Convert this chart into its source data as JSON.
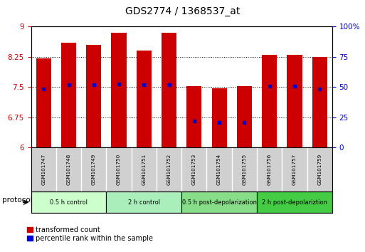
{
  "title": "GDS2774 / 1368537_at",
  "samples": [
    "GSM101747",
    "GSM101748",
    "GSM101749",
    "GSM101750",
    "GSM101751",
    "GSM101752",
    "GSM101753",
    "GSM101754",
    "GSM101755",
    "GSM101756",
    "GSM101757",
    "GSM101759"
  ],
  "bar_tops": [
    8.2,
    8.6,
    8.55,
    8.85,
    8.4,
    8.85,
    7.52,
    7.47,
    7.52,
    8.3,
    8.3,
    8.25
  ],
  "bar_bottoms": [
    6.0,
    6.0,
    6.0,
    6.0,
    6.0,
    6.0,
    6.0,
    6.0,
    6.0,
    6.0,
    6.0,
    6.0
  ],
  "blue_dots": [
    7.45,
    7.55,
    7.55,
    7.58,
    7.56,
    7.55,
    6.65,
    6.62,
    6.62,
    7.52,
    7.52,
    7.45
  ],
  "ylim_left": [
    6.0,
    9.0
  ],
  "ylim_right": [
    0,
    100
  ],
  "yticks_left": [
    6.0,
    6.75,
    7.5,
    8.25,
    9.0
  ],
  "ytick_labels_left": [
    "6",
    "6.75",
    "7.5",
    "8.25",
    "9"
  ],
  "yticks_right": [
    0,
    25,
    50,
    75,
    100
  ],
  "ytick_labels_right": [
    "0",
    "25",
    "50",
    "75",
    "100%"
  ],
  "hlines": [
    6.75,
    7.5,
    8.25
  ],
  "bar_color": "#cc0000",
  "dot_color": "#0000cc",
  "bar_width": 0.6,
  "protocols": [
    {
      "label": "0.5 h control",
      "start": 0,
      "end": 3,
      "color": "#ccffcc"
    },
    {
      "label": "2 h control",
      "start": 3,
      "end": 6,
      "color": "#aaeebb"
    },
    {
      "label": "0.5 h post-depolarization",
      "start": 6,
      "end": 9,
      "color": "#88dd88"
    },
    {
      "label": "2 h post-depolariztion",
      "start": 9,
      "end": 12,
      "color": "#44cc44"
    }
  ],
  "legend_items": [
    {
      "label": "transformed count",
      "color": "#cc0000"
    },
    {
      "label": "percentile rank within the sample",
      "color": "#0000cc"
    }
  ],
  "bg_color": "#ffffff",
  "plot_bg_color": "#ffffff",
  "grid_color": "#000000",
  "tick_label_color_left": "#cc0000",
  "tick_label_color_right": "#0000cc",
  "sample_box_color": "#d0d0d0",
  "sample_sep_color": "#ffffff"
}
